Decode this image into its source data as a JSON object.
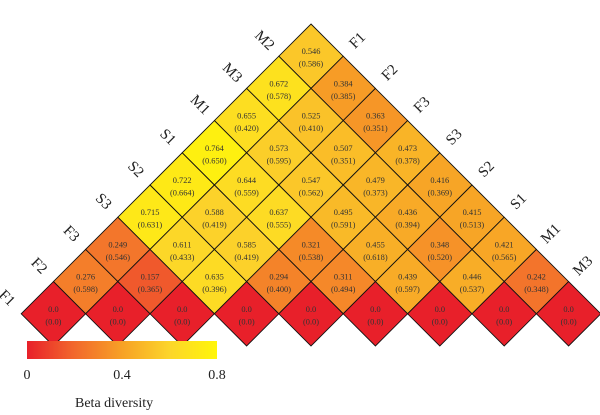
{
  "chart_data": {
    "type": "heatmap",
    "layout": "triangular-diamond",
    "left_labels": [
      "F1",
      "F2",
      "F3",
      "S3",
      "S2",
      "S1",
      "M1",
      "M3",
      "M2"
    ],
    "right_labels": [
      "F1",
      "F2",
      "F3",
      "S3",
      "S2",
      "S1",
      "M1",
      "M3",
      "M2"
    ],
    "rows": [
      [
        {
          "v": "0.546",
          "p": "(0.586)"
        }
      ],
      [
        {
          "v": "0.672",
          "p": "(0.578)"
        },
        {
          "v": "0.384",
          "p": "(0.385)"
        }
      ],
      [
        {
          "v": "0.655",
          "p": "(0.420)"
        },
        {
          "v": "0.525",
          "p": "(0.410)"
        },
        {
          "v": "0.363",
          "p": "(0.351)"
        }
      ],
      [
        {
          "v": "0.764",
          "p": "(0.650)"
        },
        {
          "v": "0.573",
          "p": "(0.595)"
        },
        {
          "v": "0.507",
          "p": "(0.351)"
        },
        {
          "v": "0.473",
          "p": "(0.378)"
        }
      ],
      [
        {
          "v": "0.722",
          "p": "(0.664)"
        },
        {
          "v": "0.644",
          "p": "(0.559)"
        },
        {
          "v": "0.547",
          "p": "(0.562)"
        },
        {
          "v": "0.479",
          "p": "(0.373)"
        },
        {
          "v": "0.416",
          "p": "(0.369)"
        }
      ],
      [
        {
          "v": "0.715",
          "p": "(0.631)"
        },
        {
          "v": "0.588",
          "p": "(0.419)"
        },
        {
          "v": "0.637",
          "p": "(0.555)"
        },
        {
          "v": "0.495",
          "p": "(0.591)"
        },
        {
          "v": "0.436",
          "p": "(0.394)"
        },
        {
          "v": "0.415",
          "p": "(0.513)"
        }
      ],
      [
        {
          "v": "0.249",
          "p": "(0.546)"
        },
        {
          "v": "0.611",
          "p": "(0.433)"
        },
        {
          "v": "0.585",
          "p": "(0.419)"
        },
        {
          "v": "0.321",
          "p": "(0.538)"
        },
        {
          "v": "0.455",
          "p": "(0.618)"
        },
        {
          "v": "0.348",
          "p": "(0.520)"
        },
        {
          "v": "0.421",
          "p": "(0.565)"
        }
      ],
      [
        {
          "v": "0.276",
          "p": "(0.598)"
        },
        {
          "v": "0.157",
          "p": "(0.365)"
        },
        {
          "v": "0.635",
          "p": "(0.396)"
        },
        {
          "v": "0.294",
          "p": "(0.400)"
        },
        {
          "v": "0.311",
          "p": "(0.494)"
        },
        {
          "v": "0.439",
          "p": "(0.597)"
        },
        {
          "v": "0.446",
          "p": "(0.537)"
        },
        {
          "v": "0.242",
          "p": "(0.348)"
        }
      ],
      [
        {
          "v": "0.0",
          "p": "(0.0)"
        },
        {
          "v": "0.0",
          "p": "(0.0)"
        },
        {
          "v": "0.0",
          "p": "(0.0)"
        },
        {
          "v": "0.0",
          "p": "(0.0)"
        },
        {
          "v": "0.0",
          "p": "(0.0)"
        },
        {
          "v": "0.0",
          "p": "(0.0)"
        },
        {
          "v": "0.0",
          "p": "(0.0)"
        },
        {
          "v": "0.0",
          "p": "(0.0)"
        },
        {
          "v": "0.0",
          "p": "(0.0)"
        }
      ]
    ],
    "colorbar": {
      "title": "Beta diversity",
      "ticks": [
        "0",
        "0.4",
        "0.8"
      ],
      "range": [
        0,
        0.8
      ],
      "colors": [
        "#e8202a",
        "#f2682c",
        "#f7a126",
        "#fcd52a",
        "#fff60a"
      ]
    }
  }
}
